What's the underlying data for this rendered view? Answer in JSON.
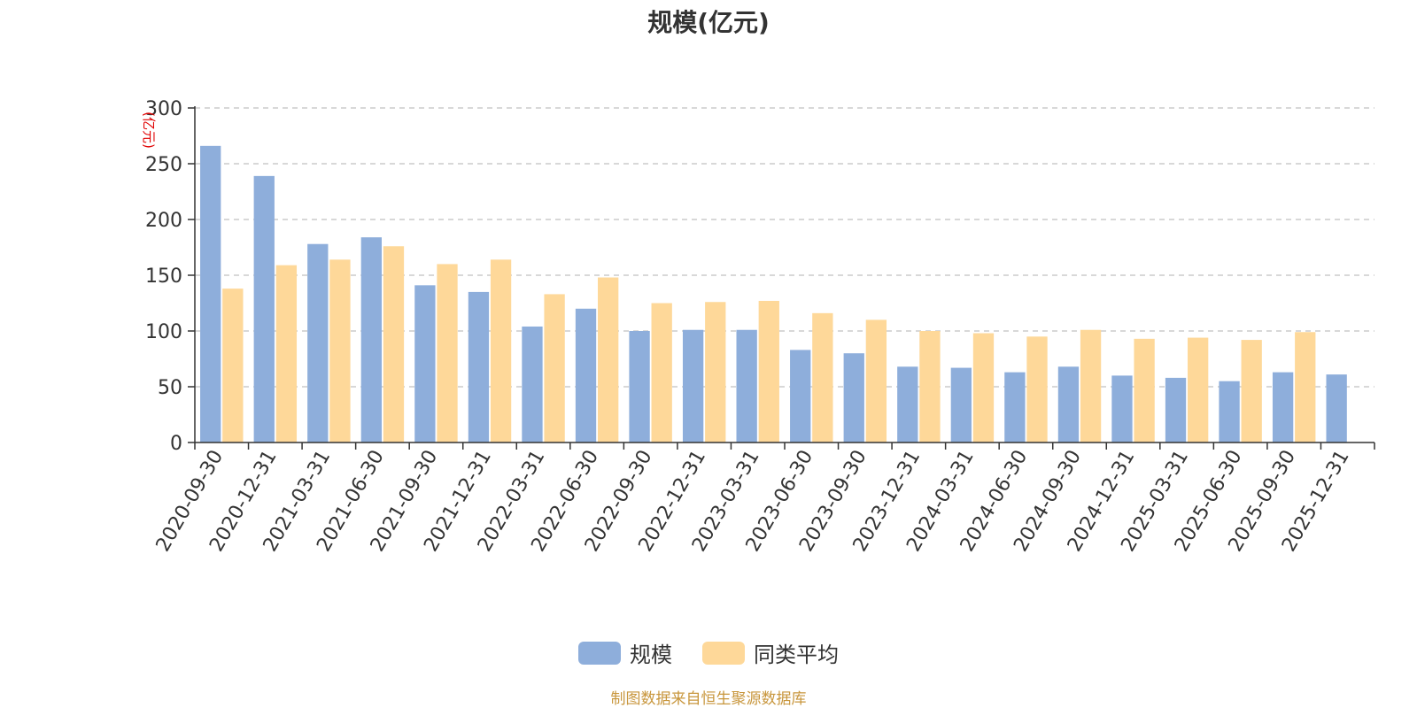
{
  "chart_data": {
    "type": "bar",
    "title": "规模(亿元)",
    "ylabel": "(亿元)",
    "xlabel": "",
    "ylim": [
      0,
      300
    ],
    "yticks": [
      0,
      50,
      100,
      150,
      200,
      250,
      300
    ],
    "grid": true,
    "legend_position": "bottom-center",
    "categories": [
      "2020-09-30",
      "2020-12-31",
      "2021-03-31",
      "2021-06-30",
      "2021-09-30",
      "2021-12-31",
      "2022-03-31",
      "2022-06-30",
      "2022-09-30",
      "2022-12-31",
      "2023-03-31",
      "2023-06-30",
      "2023-09-30",
      "2023-12-31",
      "2024-03-31",
      "2024-06-30",
      "2024-09-30",
      "2024-12-31",
      "2025-03-31",
      "2025-06-30",
      "2025-09-30",
      "2025-12-31"
    ],
    "series": [
      {
        "name": "规模",
        "color": "#8eaedb",
        "values": [
          266,
          239,
          178,
          184,
          141,
          135,
          104,
          120,
          100,
          101,
          101,
          83,
          80,
          68,
          67,
          63,
          68,
          60,
          58,
          55,
          63,
          61
        ]
      },
      {
        "name": "同类平均",
        "color": "#fed899",
        "values": [
          138,
          159,
          164,
          176,
          160,
          164,
          133,
          148,
          125,
          126,
          127,
          116,
          110,
          100,
          98,
          95,
          101,
          93,
          94,
          92,
          99,
          null
        ]
      }
    ]
  },
  "source_note": "制图数据来自恒生聚源数据库",
  "colors": {
    "axis": "#333333",
    "grid": "#cccccc",
    "ylabel": "#e00000"
  }
}
